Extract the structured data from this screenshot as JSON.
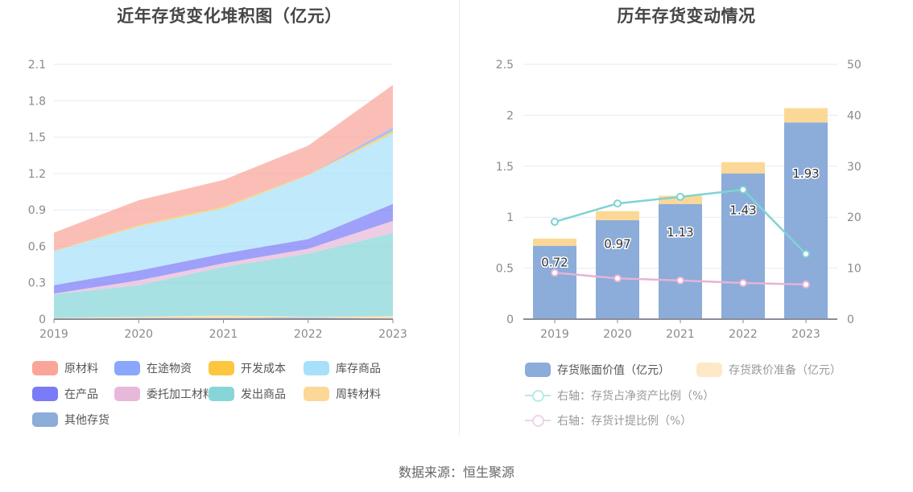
{
  "footer": {
    "source": "数据来源：恒生聚源"
  },
  "chart_data": [
    {
      "type": "area",
      "stacked": true,
      "title": "近年存货变化堆积图（亿元）",
      "xlabel": "",
      "ylabel": "",
      "categories": [
        "2019",
        "2020",
        "2021",
        "2022",
        "2023"
      ],
      "yticks": [
        "0",
        "0.3",
        "0.6",
        "0.9",
        "1.2",
        "1.5",
        "1.8",
        "2.1"
      ],
      "ylim": [
        0,
        2.1
      ],
      "grid": true,
      "legend_position": "bottom-left",
      "stack_order_bottom_to_top": [
        "其他存货",
        "周转材料",
        "发出商品",
        "委托加工材料",
        "在产品",
        "库存商品",
        "开发成本",
        "在途物资",
        "原材料"
      ],
      "legend_order": [
        "原材料",
        "在途物资",
        "开发成本",
        "库存商品",
        "在产品",
        "委托加工材料",
        "发出商品",
        "周转材料",
        "其他存货"
      ],
      "series": [
        {
          "name": "原材料",
          "color": "#f9a59a",
          "values": [
            0.15,
            0.205,
            0.22,
            0.24,
            0.35
          ]
        },
        {
          "name": "在途物资",
          "color": "#89a7fc",
          "values": [
            0.0,
            0.0,
            0.0,
            0.0,
            0.03
          ]
        },
        {
          "name": "开发成本",
          "color": "#fcc63f",
          "values": [
            0.003,
            0.01,
            0.012,
            0.005,
            0.02
          ]
        },
        {
          "name": "库存商品",
          "color": "#a8e0fb",
          "values": [
            0.28,
            0.365,
            0.375,
            0.525,
            0.58
          ]
        },
        {
          "name": "在产品",
          "color": "#7a7cf7",
          "values": [
            0.07,
            0.08,
            0.08,
            0.08,
            0.14
          ]
        },
        {
          "name": "委托加工材料",
          "color": "#e8b8da",
          "values": [
            0.005,
            0.04,
            0.03,
            0.04,
            0.1
          ]
        },
        {
          "name": "发出商品",
          "color": "#86d6d8",
          "values": [
            0.195,
            0.26,
            0.4,
            0.52,
            0.685
          ]
        },
        {
          "name": "周转材料",
          "color": "#fcd897",
          "values": [
            0.005,
            0.01,
            0.02,
            0.005,
            0.02
          ]
        },
        {
          "name": "其他存货",
          "color": "#8cacd9",
          "values": [
            0.005,
            0.01,
            0.01,
            0.015,
            0.005
          ]
        }
      ]
    },
    {
      "type": "bar",
      "stacked": true,
      "title": "历年存货变动情况",
      "categories": [
        "2019",
        "2020",
        "2021",
        "2022",
        "2023"
      ],
      "y_left": {
        "ylim": [
          0,
          2.5
        ],
        "ticks": [
          "0",
          "0.5",
          "1",
          "1.5",
          "2",
          "2.5"
        ]
      },
      "y_right": {
        "ylim": [
          0,
          50
        ],
        "ticks": [
          "0",
          "10",
          "20",
          "30",
          "40",
          "50"
        ]
      },
      "grid": true,
      "legend_position": "bottom",
      "series": [
        {
          "name": "存货账面价值（亿元）",
          "kind": "bar",
          "axis": "left",
          "color": "#8cacd9",
          "values": [
            0.72,
            0.97,
            1.13,
            1.43,
            1.93
          ],
          "labels": [
            "0.72",
            "0.97",
            "1.13",
            "1.43",
            "1.93"
          ]
        },
        {
          "name": "存货跌价准备（亿元）",
          "kind": "bar",
          "axis": "left",
          "color": "#fcd897",
          "legend_color": "#fde9c7",
          "values": [
            0.07,
            0.09,
            0.08,
            0.11,
            0.14
          ]
        },
        {
          "name": "右轴：存货占净资产比例（%）",
          "kind": "line",
          "axis": "right",
          "color": "#7fd3d3",
          "legend_color": "#b7e9ea",
          "values": [
            19.1,
            22.7,
            24.0,
            25.4,
            12.8
          ]
        },
        {
          "name": "右轴：存货计提比例（%）",
          "kind": "line",
          "axis": "right",
          "color": "#e6b3d6",
          "legend_color": "#f0d3e7",
          "values": [
            9.1,
            8.0,
            7.6,
            7.1,
            6.8
          ]
        }
      ]
    }
  ]
}
